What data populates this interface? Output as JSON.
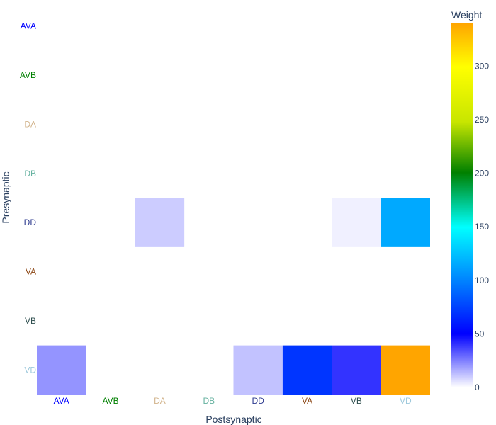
{
  "chart_data": {
    "type": "heatmap",
    "xlabel": "Postsynaptic",
    "ylabel": "Presynaptic",
    "x_categories": [
      "AVA",
      "AVB",
      "DA",
      "DB",
      "DD",
      "VA",
      "VB",
      "VD"
    ],
    "y_categories": [
      "AVA",
      "AVB",
      "DA",
      "DB",
      "DD",
      "VA",
      "VB",
      "VD"
    ],
    "category_colors": {
      "AVA": "#0000ff",
      "AVB": "#008000",
      "DA": "#d2b48c",
      "DB": "#66b2a0",
      "DD": "#2e3b8f",
      "VA": "#8b4513",
      "VB": "#2f4f4f",
      "VD": "#9ec9dc"
    },
    "z": [
      [
        0,
        0,
        0,
        0,
        0,
        0,
        0,
        0
      ],
      [
        0,
        0,
        0,
        0,
        0,
        0,
        0,
        0
      ],
      [
        0,
        0,
        0,
        0,
        0,
        0,
        0,
        0
      ],
      [
        0,
        0,
        0,
        0,
        0,
        0,
        0,
        0
      ],
      [
        0,
        0,
        10,
        0,
        0,
        0,
        3,
        115
      ],
      [
        0,
        0,
        0,
        0,
        0,
        0,
        0,
        0
      ],
      [
        0,
        0,
        0,
        0,
        0,
        0,
        0,
        0
      ],
      [
        21,
        0,
        0,
        0,
        12,
        70,
        40,
        340
      ]
    ],
    "colorbar": {
      "title": "Weight",
      "range": [
        0,
        340
      ],
      "tickvals": [
        0,
        50,
        100,
        150,
        200,
        250,
        300
      ],
      "colorscale": [
        [
          0.0,
          "#ffffff"
        ],
        [
          0.147,
          "#0000ff"
        ],
        [
          0.29,
          "#0080ff"
        ],
        [
          0.44,
          "#00ffff"
        ],
        [
          0.59,
          "#008000"
        ],
        [
          0.73,
          "#c8e600"
        ],
        [
          0.88,
          "#ffff00"
        ],
        [
          1.0,
          "#ffa500"
        ]
      ]
    }
  }
}
